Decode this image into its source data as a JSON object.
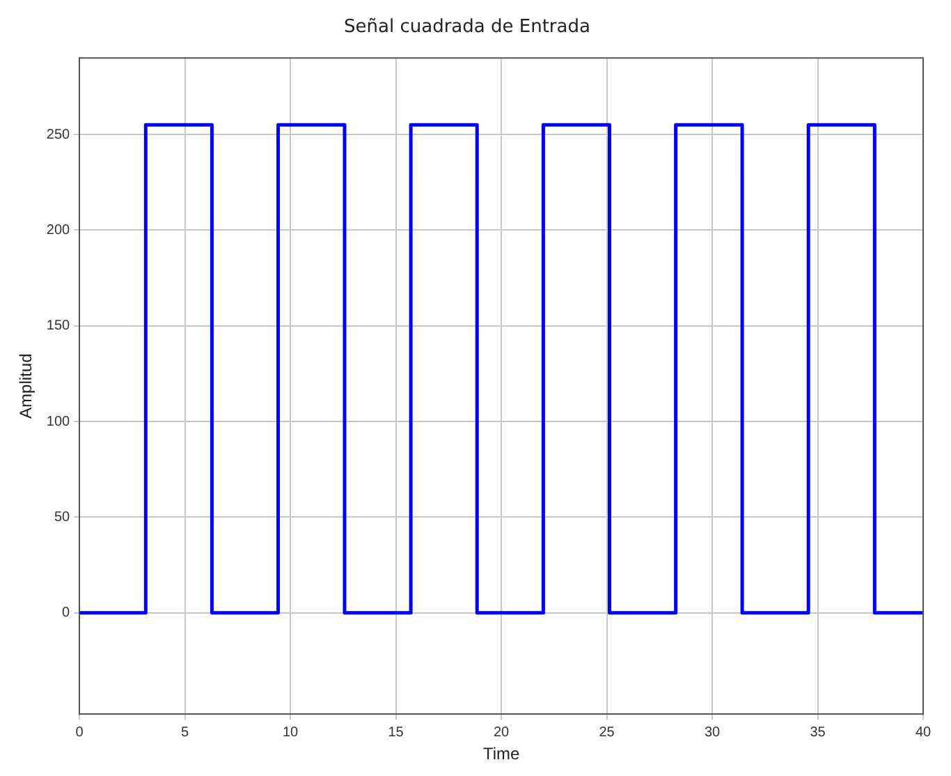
{
  "chart_data": {
    "type": "step",
    "title": "Señal cuadrada de Entrada",
    "xlabel": "Time",
    "ylabel": "Amplitud",
    "x": [
      0,
      3.14,
      6.28,
      9.42,
      12.57,
      15.71,
      18.85,
      21.99,
      25.13,
      28.27,
      31.42,
      34.56,
      37.7,
      40
    ],
    "series": [
      {
        "color": "#0000ff",
        "values": [
          0,
          255,
          0,
          255,
          0,
          255,
          0,
          255,
          0,
          255,
          0,
          255,
          0,
          0
        ]
      }
    ],
    "xlim": [
      0,
      40
    ],
    "xticks": [
      0,
      5,
      10,
      15,
      20,
      25,
      30,
      35,
      40
    ],
    "ylim": [
      -53,
      290
    ],
    "yticks": [
      0,
      50,
      100,
      150,
      200,
      250
    ],
    "grid": true,
    "legend": false,
    "line_style": "solid",
    "marker": "none"
  }
}
